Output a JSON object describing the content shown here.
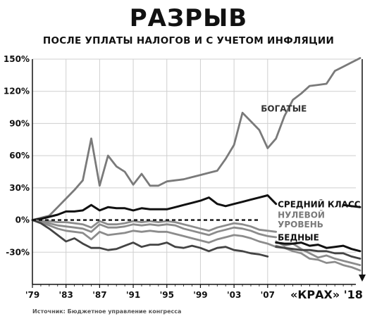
{
  "header": {
    "title": "РАЗРЫВ",
    "subtitle": "ПОСЛЕ УПЛАТЫ НАЛОГОВ И С УЧЕТОМ ИНФЛЯЦИИ"
  },
  "footer": {
    "source": "Источник: Бюджетное управление конгресса",
    "brand": "«КРАХ» '18"
  },
  "colors": {
    "rich": "#7a7a7a",
    "middle": "#111111",
    "poor": "#444444",
    "gray": "#8c8c8c"
  },
  "chart_data": {
    "type": "line",
    "xlim": [
      1979,
      2018
    ],
    "ylim": [
      -55,
      150
    ],
    "x_ticks": [
      1979,
      1983,
      1987,
      1991,
      1995,
      1999,
      2003,
      2007
    ],
    "x_tick_labels": [
      "'79",
      "'83",
      "'87",
      "'91",
      "'95",
      "'99",
      "'03",
      "'07"
    ],
    "y_ticks": [
      150,
      120,
      90,
      60,
      30,
      0,
      -30
    ],
    "y_tick_labels": [
      "150%",
      "120%",
      "90%",
      "60%",
      "30%",
      "0%",
      "-30%"
    ],
    "zero_line_label": "НУЛЕВОЙ УРОВЕНЬ",
    "series": [
      {
        "name": "БОГАТЫЕ",
        "color": "#7a7a7a",
        "x": [
          1979,
          1980,
          1981,
          1982,
          1983,
          1984,
          1985,
          1986,
          1987,
          1988,
          1989,
          1990,
          1991,
          1992,
          1993,
          1994,
          1995,
          1996,
          1997,
          1998,
          1999,
          2000,
          2001,
          2002,
          2003,
          2004,
          2005,
          2006,
          2007,
          2008,
          2009,
          2010,
          2011,
          2012,
          2013,
          2014,
          2015,
          2016,
          2017,
          2018
        ],
        "y": [
          0,
          2,
          4,
          12,
          20,
          28,
          37,
          76,
          32,
          60,
          50,
          45,
          33,
          43,
          32,
          32,
          36,
          37,
          38,
          40,
          42,
          44,
          46,
          57,
          70,
          100,
          92,
          84,
          67,
          76,
          97,
          112,
          118,
          125,
          126,
          127,
          139,
          143,
          147,
          151
        ]
      },
      {
        "name": "СРЕДНИЙ КЛАСС",
        "color": "#111111",
        "x": [
          1979,
          1980,
          1981,
          1982,
          1983,
          1984,
          1985,
          1986,
          1987,
          1988,
          1989,
          1990,
          1991,
          1992,
          1993,
          1994,
          1995,
          1996,
          1997,
          1998,
          1999,
          2000,
          2001,
          2002,
          2003,
          2004,
          2005,
          2006,
          2007,
          2008
        ],
        "y": [
          0,
          1,
          3,
          5,
          8,
          8,
          9,
          14,
          9,
          12,
          11,
          11,
          9,
          11,
          10,
          10,
          10,
          12,
          14,
          16,
          18,
          21,
          15,
          13,
          15,
          17,
          19,
          21,
          23,
          15
        ]
      },
      {
        "name": "СРЕДНИЙ КЛАСС",
        "color": "#111111",
        "x": [
          2016,
          2017,
          2018
        ],
        "y": [
          14,
          13,
          12
        ]
      },
      {
        "name": "",
        "color": "#8c8c8c",
        "x": [
          1979,
          1980,
          1981,
          1982,
          1983,
          1984,
          1985,
          1986,
          1987,
          1988,
          1989,
          1990,
          1991,
          1992,
          1993,
          1994,
          1995,
          1996,
          1997,
          1998,
          1999,
          2000,
          2001,
          2002,
          2003,
          2004,
          2005,
          2006,
          2007,
          2008
        ],
        "y": [
          0,
          -1,
          -1,
          -2,
          -2,
          -3,
          -4,
          -7,
          -1,
          -4,
          -4,
          -3,
          -1,
          -2,
          -1,
          -2,
          -1,
          -2,
          -4,
          -6,
          -8,
          -10,
          -7,
          -5,
          -3,
          -4,
          -6,
          -9,
          -10,
          -11
        ]
      },
      {
        "name": "",
        "color": "#8c8c8c",
        "x": [
          1979,
          1980,
          1981,
          1982,
          1983,
          1984,
          1985,
          1986,
          1987,
          1988,
          1989,
          1990,
          1991,
          1992,
          1993,
          1994,
          1995,
          1996,
          1997,
          1998,
          1999,
          2000,
          2001,
          2002,
          2003,
          2004,
          2005,
          2006,
          2007,
          2008
        ],
        "y": [
          0,
          -1,
          -3,
          -5,
          -6,
          -7,
          -8,
          -11,
          -4,
          -7,
          -7,
          -6,
          -4,
          -5,
          -4,
          -5,
          -4,
          -5,
          -8,
          -10,
          -12,
          -14,
          -11,
          -9,
          -7,
          -8,
          -10,
          -13,
          -15,
          -16
        ]
      },
      {
        "name": "",
        "color": "#8c8c8c",
        "x": [
          1979,
          1980,
          1981,
          1982,
          1983,
          1984,
          1985,
          1986,
          1987,
          1988,
          1989,
          1990,
          1991,
          1992,
          1993,
          1994,
          1995,
          1996,
          1997,
          1998,
          1999,
          2000,
          2001,
          2002,
          2003,
          2004,
          2005,
          2006,
          2007,
          2008
        ],
        "y": [
          0,
          -2,
          -5,
          -8,
          -10,
          -11,
          -12,
          -18,
          -11,
          -14,
          -13,
          -12,
          -10,
          -11,
          -10,
          -11,
          -11,
          -13,
          -15,
          -17,
          -19,
          -21,
          -18,
          -16,
          -14,
          -15,
          -17,
          -20,
          -22,
          -25
        ]
      },
      {
        "name": "БЕДНЫЕ",
        "color": "#444444",
        "x": [
          1979,
          1980,
          1981,
          1982,
          1983,
          1984,
          1985,
          1986,
          1987,
          1988,
          1989,
          1990,
          1991,
          1992,
          1993,
          1994,
          1995,
          1996,
          1997,
          1998,
          1999,
          2000,
          2001,
          2002,
          2003,
          2004,
          2005,
          2006,
          2007
        ],
        "y": [
          0,
          -3,
          -8,
          -14,
          -20,
          -17,
          -22,
          -26,
          -26,
          -28,
          -27,
          -24,
          -21,
          -25,
          -23,
          -23,
          -21,
          -25,
          -26,
          -24,
          -26,
          -29,
          -26,
          -25,
          -28,
          -29,
          -31,
          -32,
          -34
        ]
      },
      {
        "name": "",
        "color": "#8c8c8c",
        "x": [
          2008,
          2009,
          2010,
          2011,
          2012,
          2013,
          2014,
          2015,
          2016,
          2017,
          2018
        ],
        "y": [
          -20,
          -24,
          -22,
          -27,
          -31,
          -35,
          -33,
          -36,
          -38,
          -40,
          -42
        ]
      },
      {
        "name": "",
        "color": "#8c8c8c",
        "x": [
          2008,
          2009,
          2010,
          2011,
          2012,
          2013,
          2014,
          2015,
          2016,
          2017,
          2018
        ],
        "y": [
          -24,
          -26,
          -29,
          -31,
          -36,
          -37,
          -40,
          -39,
          -42,
          -44,
          -47
        ]
      },
      {
        "name": "",
        "color": "#444444",
        "x": [
          2008,
          2009,
          2010,
          2011,
          2012,
          2013,
          2014,
          2015,
          2016,
          2017,
          2018
        ],
        "y": [
          -25,
          -26,
          -27,
          -28,
          -28,
          -29,
          -29,
          -31,
          -31,
          -34,
          -36
        ]
      },
      {
        "name": "",
        "color": "#111111",
        "x": [
          2008,
          2009,
          2010,
          2011,
          2012,
          2013,
          2014,
          2015,
          2016,
          2017,
          2018
        ],
        "y": [
          -21,
          -22,
          -22,
          -21,
          -24,
          -23,
          -26,
          -25,
          -24,
          -27,
          -29
        ]
      }
    ],
    "labels": [
      {
        "text": "БОГАТЫЕ",
        "x": 2006.2,
        "y": 101,
        "color": "#333333"
      },
      {
        "text": "СРЕДНИЙ КЛАСС",
        "x": 2008.2,
        "y": 12,
        "color": "#111111"
      },
      {
        "text": "НУЛЕВОЙ",
        "x": 2008.2,
        "y": 2,
        "color": "#7a7a7a"
      },
      {
        "text": "УРОВЕНЬ",
        "x": 2008.2,
        "y": -7,
        "color": "#7a7a7a"
      },
      {
        "text": "БЕДНЫЕ",
        "x": 2008.2,
        "y": -19,
        "color": "#111111"
      }
    ]
  }
}
